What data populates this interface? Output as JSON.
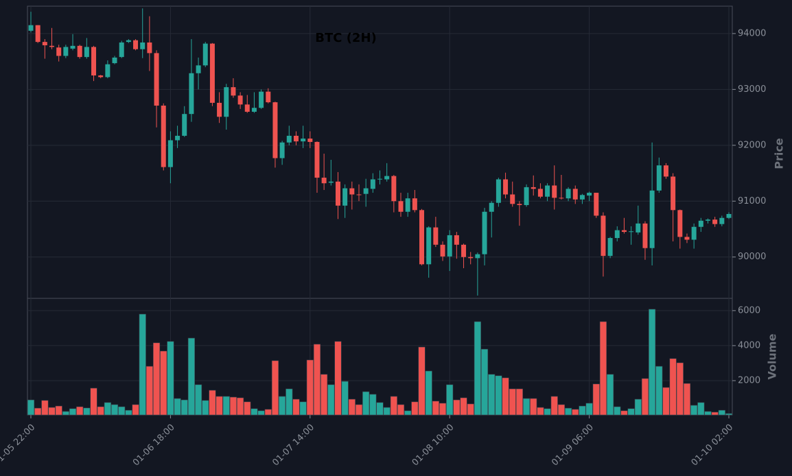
{
  "chart_data": {
    "type": "candlestick",
    "title": "BTC (2H)",
    "categories": [
      "01-05 22:00",
      null,
      null,
      null,
      null,
      null,
      null,
      null,
      null,
      null,
      null,
      null,
      null,
      null,
      null,
      null,
      null,
      null,
      null,
      null,
      "01-06 18:00",
      null,
      null,
      null,
      null,
      null,
      null,
      null,
      null,
      null,
      null,
      null,
      null,
      null,
      null,
      null,
      null,
      null,
      null,
      null,
      "01-07 14:00",
      null,
      null,
      null,
      null,
      null,
      null,
      null,
      null,
      null,
      null,
      null,
      null,
      null,
      null,
      null,
      null,
      null,
      null,
      null,
      "01-08 10:00",
      null,
      null,
      null,
      null,
      null,
      null,
      null,
      null,
      null,
      null,
      null,
      null,
      null,
      null,
      null,
      null,
      null,
      null,
      null,
      "01-09 06:00",
      null,
      null,
      null,
      null,
      null,
      null,
      null,
      null,
      null,
      null,
      null,
      null,
      null,
      null,
      null,
      null,
      null,
      null,
      null,
      "01-10 02:00"
    ],
    "open": [
      94050,
      94150,
      93850,
      93780,
      93750,
      93600,
      93730,
      93780,
      93580,
      93760,
      93250,
      93220,
      93470,
      93580,
      93850,
      93880,
      93720,
      93840,
      93650,
      92710,
      91610,
      92090,
      92170,
      92560,
      93290,
      93430,
      93820,
      92760,
      92510,
      93040,
      92890,
      92730,
      92600,
      92670,
      92960,
      92770,
      91770,
      92050,
      92170,
      92070,
      92120,
      92060,
      91420,
      91330,
      91350,
      90920,
      91230,
      91120,
      91130,
      91220,
      91390,
      91390,
      91450,
      91000,
      90810,
      91050,
      90840,
      89870,
      90530,
      90220,
      90010,
      90390,
      90220,
      90000,
      89980,
      90050,
      90810,
      90970,
      91390,
      91120,
      90950,
      90930,
      91250,
      91220,
      91080,
      91280,
      91060,
      91050,
      91220,
      91030,
      91100,
      91150,
      90740,
      90020,
      90340,
      90480,
      90450,
      90440,
      90600,
      90160,
      91190,
      91640,
      91440,
      90840,
      90360,
      90310,
      90540,
      90650,
      90670,
      90590,
      90700
    ],
    "high": [
      94390,
      94150,
      93900,
      94100,
      93800,
      93800,
      93990,
      93800,
      93920,
      93780,
      93260,
      93520,
      93600,
      93870,
      93900,
      93900,
      94450,
      94310,
      93700,
      92750,
      92250,
      92350,
      92700,
      93900,
      93570,
      93850,
      93830,
      92950,
      93100,
      93200,
      92950,
      92900,
      92950,
      93000,
      93020,
      92780,
      92080,
      92350,
      92250,
      92350,
      92250,
      92070,
      91850,
      91740,
      91520,
      91300,
      91350,
      91300,
      91400,
      91500,
      91550,
      91680,
      91470,
      91150,
      91150,
      91200,
      90860,
      90550,
      90720,
      90280,
      90480,
      90450,
      90240,
      90090,
      90080,
      90880,
      91000,
      91420,
      91510,
      91350,
      91000,
      91300,
      91460,
      91320,
      91320,
      91640,
      91470,
      91250,
      91280,
      91130,
      91170,
      91150,
      90800,
      90360,
      90550,
      90700,
      90550,
      90920,
      90640,
      92050,
      91780,
      91680,
      91500,
      90850,
      90420,
      90600,
      90700,
      90690,
      90720,
      90740,
      90800
    ],
    "low": [
      94020,
      93830,
      93550,
      93720,
      93500,
      93560,
      93700,
      93550,
      93550,
      93150,
      93200,
      93200,
      93450,
      93560,
      93830,
      93700,
      93560,
      93330,
      92320,
      91550,
      91320,
      91950,
      92150,
      92420,
      93000,
      93400,
      92700,
      92400,
      92280,
      92850,
      92650,
      92580,
      92580,
      92650,
      92750,
      91600,
      91650,
      92000,
      92000,
      91950,
      91950,
      91150,
      91200,
      91280,
      90680,
      90700,
      90850,
      91000,
      90900,
      91150,
      91300,
      91350,
      90800,
      90720,
      90720,
      90800,
      89850,
      89630,
      90180,
      89930,
      89750,
      89970,
      89800,
      89870,
      89310,
      89850,
      90350,
      90900,
      91050,
      90900,
      90560,
      90900,
      91100,
      91050,
      91000,
      90850,
      91030,
      91000,
      90950,
      90950,
      91000,
      90700,
      89650,
      89980,
      90280,
      90420,
      90220,
      90400,
      89950,
      89850,
      91150,
      91400,
      90280,
      90150,
      90250,
      90150,
      90450,
      90600,
      90540,
      90550,
      90680
    ],
    "close": [
      94150,
      93850,
      93790,
      93760,
      93600,
      93760,
      93780,
      93580,
      93760,
      93250,
      93220,
      93450,
      93570,
      93840,
      93880,
      93720,
      93840,
      93650,
      92710,
      91610,
      92090,
      92170,
      92560,
      93290,
      93430,
      93820,
      92760,
      92510,
      93040,
      92890,
      92730,
      92600,
      92670,
      92960,
      92770,
      91770,
      92050,
      92170,
      92070,
      92120,
      92060,
      91420,
      91320,
      91350,
      90920,
      91230,
      91120,
      91110,
      91230,
      91390,
      91400,
      91450,
      91000,
      90810,
      91050,
      90840,
      89870,
      90530,
      90220,
      90010,
      90390,
      90220,
      90000,
      89980,
      90050,
      90810,
      90970,
      91390,
      91120,
      90950,
      90930,
      91250,
      91220,
      91080,
      91280,
      91060,
      91050,
      91220,
      91030,
      91110,
      91150,
      90740,
      90020,
      90340,
      90480,
      90450,
      90460,
      90600,
      90160,
      91190,
      91640,
      91440,
      90840,
      90360,
      90310,
      90540,
      90650,
      90670,
      90590,
      90700,
      90770
    ],
    "volume": [
      900,
      430,
      870,
      470,
      550,
      240,
      400,
      510,
      440,
      1570,
      510,
      750,
      630,
      510,
      310,
      630,
      5800,
      2820,
      4160,
      3690,
      4240,
      980,
      900,
      4430,
      1770,
      870,
      1450,
      1100,
      1100,
      1060,
      1020,
      790,
      400,
      280,
      360,
      3140,
      1100,
      1530,
      940,
      790,
      3180,
      4080,
      2360,
      1770,
      4240,
      1960,
      940,
      630,
      1370,
      1220,
      750,
      470,
      1100,
      630,
      280,
      790,
      3920,
      2550,
      830,
      710,
      1770,
      900,
      1020,
      670,
      5370,
      3800,
      2360,
      2280,
      2160,
      1530,
      1530,
      980,
      980,
      470,
      400,
      1100,
      630,
      430,
      360,
      550,
      710,
      1810,
      5370,
      2360,
      510,
      280,
      400,
      940,
      2120,
      6080,
      2820,
      1610,
      3260,
      3020,
      1840,
      590,
      750,
      240,
      200,
      310,
      120
    ],
    "ylabel": "Price",
    "ylim": [
      89260,
      94490
    ],
    "yticks": [
      90000,
      91000,
      92000,
      93000,
      94000
    ],
    "volume_label": "Volume",
    "volume_ylim": [
      40,
      6700
    ],
    "volume_yticks": [
      2000,
      4000,
      6000
    ],
    "up_color": "#26a69a",
    "down_color": "#ef5350",
    "grid": true
  }
}
